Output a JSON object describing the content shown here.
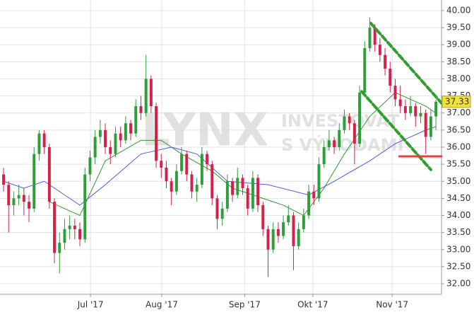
{
  "chart_data": {
    "type": "candlestick",
    "candles": [
      [
        35.2,
        35.4,
        34.7,
        34.9
      ],
      [
        34.9,
        35.0,
        33.5,
        34.3
      ],
      [
        34.3,
        34.7,
        34.0,
        34.5
      ],
      [
        34.5,
        34.9,
        34.3,
        34.6
      ],
      [
        34.6,
        34.8,
        34.0,
        34.4
      ],
      [
        34.4,
        34.6,
        33.8,
        34.2
      ],
      [
        34.2,
        36.0,
        34.1,
        35.8
      ],
      [
        35.8,
        36.5,
        35.6,
        36.4
      ],
      [
        36.4,
        36.5,
        35.8,
        36.0
      ],
      [
        36.0,
        36.1,
        34.2,
        34.4
      ],
      [
        34.4,
        34.5,
        32.6,
        32.9
      ],
      [
        32.9,
        33.5,
        32.3,
        33.2
      ],
      [
        33.2,
        33.9,
        33.0,
        33.6
      ],
      [
        33.6,
        34.0,
        33.3,
        33.7
      ],
      [
        33.7,
        33.9,
        33.3,
        33.6
      ],
      [
        33.6,
        33.8,
        33.1,
        33.3
      ],
      [
        33.3,
        35.4,
        33.2,
        35.2
      ],
      [
        35.2,
        35.9,
        35.0,
        35.7
      ],
      [
        35.7,
        36.5,
        35.5,
        36.3
      ],
      [
        36.3,
        36.8,
        36.1,
        36.5
      ],
      [
        36.5,
        36.7,
        35.8,
        36.0
      ],
      [
        36.0,
        36.2,
        35.5,
        35.8
      ],
      [
        35.8,
        36.6,
        35.7,
        36.4
      ],
      [
        36.4,
        36.6,
        36.0,
        36.2
      ],
      [
        36.2,
        36.9,
        36.1,
        36.7
      ],
      [
        36.7,
        36.8,
        36.2,
        36.4
      ],
      [
        36.4,
        37.4,
        36.3,
        37.2
      ],
      [
        37.2,
        37.5,
        36.8,
        37.0
      ],
      [
        37.0,
        38.7,
        36.9,
        38.0
      ],
      [
        38.0,
        38.1,
        37.0,
        37.2
      ],
      [
        37.2,
        37.3,
        35.4,
        35.6
      ],
      [
        35.6,
        35.8,
        35.1,
        35.4
      ],
      [
        35.4,
        35.6,
        34.8,
        35.0
      ],
      [
        35.0,
        35.1,
        34.3,
        34.7
      ],
      [
        34.7,
        35.5,
        34.6,
        35.3
      ],
      [
        35.3,
        36.0,
        35.2,
        35.8
      ],
      [
        35.8,
        35.9,
        35.0,
        35.2
      ],
      [
        35.2,
        35.3,
        34.5,
        34.7
      ],
      [
        34.7,
        35.1,
        34.4,
        34.9
      ],
      [
        34.9,
        36.0,
        34.8,
        35.8
      ],
      [
        35.8,
        35.9,
        35.3,
        35.5
      ],
      [
        35.5,
        35.6,
        34.3,
        34.5
      ],
      [
        34.5,
        34.6,
        33.6,
        33.9
      ],
      [
        33.9,
        34.4,
        33.7,
        34.2
      ],
      [
        34.2,
        35.2,
        34.1,
        35.0
      ],
      [
        35.0,
        35.1,
        34.4,
        34.6
      ],
      [
        34.6,
        35.4,
        34.5,
        35.1
      ],
      [
        35.1,
        35.2,
        34.6,
        34.8
      ],
      [
        34.8,
        34.9,
        34.0,
        34.2
      ],
      [
        34.2,
        35.3,
        34.1,
        35.1
      ],
      [
        35.1,
        35.2,
        34.1,
        34.3
      ],
      [
        34.3,
        34.4,
        33.4,
        33.6
      ],
      [
        33.6,
        33.7,
        32.2,
        33.0
      ],
      [
        33.0,
        33.8,
        32.9,
        33.6
      ],
      [
        33.6,
        33.8,
        33.2,
        33.4
      ],
      [
        33.4,
        34.0,
        33.3,
        33.8
      ],
      [
        33.8,
        34.3,
        33.7,
        34.0
      ],
      [
        34.0,
        34.1,
        32.4,
        33.1
      ],
      [
        33.1,
        33.8,
        33.0,
        33.6
      ],
      [
        33.6,
        34.2,
        33.5,
        34.0
      ],
      [
        34.0,
        34.9,
        33.9,
        34.7
      ],
      [
        34.7,
        34.9,
        34.3,
        34.5
      ],
      [
        34.5,
        35.7,
        34.4,
        35.5
      ],
      [
        35.5,
        36.2,
        35.4,
        36.0
      ],
      [
        36.0,
        36.5,
        35.9,
        36.2
      ],
      [
        36.2,
        36.3,
        35.8,
        36.0
      ],
      [
        36.0,
        36.7,
        35.9,
        36.5
      ],
      [
        36.5,
        37.1,
        36.4,
        36.9
      ],
      [
        36.9,
        37.0,
        36.5,
        36.7
      ],
      [
        36.7,
        36.8,
        35.5,
        36.1
      ],
      [
        36.1,
        37.8,
        36.0,
        37.6
      ],
      [
        37.6,
        39.1,
        37.5,
        38.9
      ],
      [
        38.9,
        39.8,
        38.8,
        39.5
      ],
      [
        39.5,
        39.6,
        38.8,
        39.0
      ],
      [
        39.0,
        39.2,
        38.5,
        38.7
      ],
      [
        38.7,
        38.9,
        38.1,
        38.3
      ],
      [
        38.3,
        38.5,
        37.6,
        37.8
      ],
      [
        37.8,
        38.0,
        37.2,
        37.4
      ],
      [
        37.4,
        37.8,
        37.0,
        37.2
      ],
      [
        37.2,
        37.4,
        36.8,
        37.0
      ],
      [
        37.0,
        37.5,
        36.9,
        37.2
      ],
      [
        37.2,
        37.3,
        36.6,
        36.9
      ],
      [
        36.9,
        37.2,
        36.7,
        37.0
      ],
      [
        37.0,
        37.1,
        35.8,
        36.3
      ],
      [
        36.3,
        37.1,
        36.2,
        36.9
      ],
      [
        36.9,
        37.4,
        36.5,
        37.33
      ]
    ],
    "up_color": "#2e9e3a",
    "down_color": "#d6204a",
    "series": [
      {
        "color": "#2a9a2a",
        "x": [
          9,
          15,
          20,
          27,
          31,
          35,
          41,
          45,
          51,
          55,
          59,
          63,
          67,
          72,
          77,
          83,
          85
        ],
        "values": [
          34.4,
          34.0,
          35.6,
          36.2,
          36.2,
          35.8,
          35.3,
          34.8,
          34.5,
          34.3,
          34.0,
          34.8,
          35.8,
          36.9,
          37.6,
          37.2,
          37.0
        ]
      },
      {
        "color": "#4a5ee0",
        "x": [
          0,
          4,
          8,
          15,
          20,
          27,
          33,
          38,
          44,
          52,
          60,
          65,
          72,
          77,
          83,
          85
        ],
        "values": [
          35.0,
          34.8,
          35.0,
          34.3,
          34.9,
          35.8,
          36.0,
          35.8,
          35.0,
          34.9,
          34.6,
          35.0,
          35.6,
          36.1,
          36.5,
          36.6
        ]
      }
    ],
    "trendlines": [
      {
        "color": "#2e9e2e",
        "dashed": true,
        "x": [
          72.2,
          86.1
        ],
        "y": [
          39.63,
          37.29
        ]
      },
      {
        "color": "#2e9e2e",
        "dashed": true,
        "x": [
          70.4,
          84.0
        ],
        "y": [
          37.63,
          35.34
        ]
      },
      {
        "color": "#e8413c",
        "dashed": false,
        "x": [
          77.8,
          86.1
        ],
        "y": [
          35.73,
          35.73
        ]
      }
    ],
    "xlim": [
      -0.7,
      86.1
    ],
    "ylim": [
      31.69,
      40.31
    ],
    "yticks": [
      {
        "value": 32,
        "label": "32.00"
      },
      {
        "value": 32.5,
        "label": "32.50"
      },
      {
        "value": 33,
        "label": "33.00"
      },
      {
        "value": 33.5,
        "label": "33.50"
      },
      {
        "value": 34,
        "label": "34.00"
      },
      {
        "value": 34.5,
        "label": "34.50"
      },
      {
        "value": 35,
        "label": "35.00"
      },
      {
        "value": 35.5,
        "label": "35.50"
      },
      {
        "value": 36,
        "label": "36.00"
      },
      {
        "value": 36.5,
        "label": "36.50"
      },
      {
        "value": 37,
        "label": "37.00"
      },
      {
        "value": 37.5,
        "label": "37.50"
      },
      {
        "value": 38,
        "label": "38.00"
      },
      {
        "value": 38.5,
        "label": "38.50"
      },
      {
        "value": 39,
        "label": "39.00"
      },
      {
        "value": 39.5,
        "label": "39.50"
      },
      {
        "value": 40,
        "label": "40.00"
      }
    ],
    "xticks": [
      {
        "value": 17.1,
        "label": "Jul '17"
      },
      {
        "value": 31.1,
        "label": "Aug '17"
      },
      {
        "value": 47.4,
        "label": "Sep '17"
      },
      {
        "value": 60.8,
        "label": "Okt '17"
      },
      {
        "value": 76.4,
        "label": "Nov '17"
      }
    ],
    "grid": true,
    "watermark": {
      "logo": "LYNX",
      "line1": "INVESTOVAT",
      "line2": "S VÝHODAMI"
    }
  }
}
